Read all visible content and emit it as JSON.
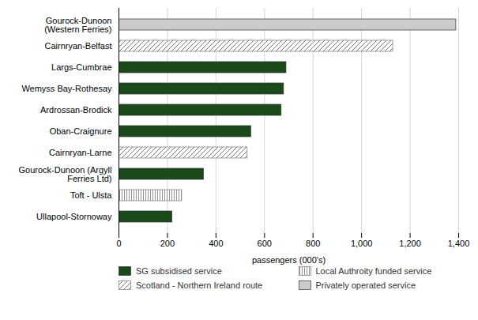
{
  "chart_data": {
    "type": "bar",
    "orientation": "horizontal",
    "categories": [
      "Gourock-Dunoon\n(Western Ferries)",
      "Cairnryan-Belfast",
      "Largs-Cumbrae",
      "Wemyss Bay-Rothesay",
      "Ardrossan-Brodick",
      "Oban-Craignure",
      "Cairnryan-Larne",
      "Gourock-Dunoon (Argyll\nFerries Ltd)",
      "Toft - Ulsta",
      "Ullapool-Stornoway"
    ],
    "series": [
      {
        "name": "SG subsidised service",
        "color": "#1a4a1a",
        "values": [
          null,
          null,
          690,
          680,
          670,
          545,
          null,
          350,
          null,
          220
        ]
      },
      {
        "name": "Scotland - Northern Ireland route",
        "values": [
          null,
          1130,
          null,
          null,
          null,
          null,
          530,
          null,
          null,
          null
        ]
      },
      {
        "name": "Local Authroity funded service",
        "values": [
          null,
          null,
          null,
          null,
          null,
          null,
          null,
          null,
          260,
          null
        ]
      },
      {
        "name": "Privately operated service",
        "color": "#cccccc",
        "values": [
          1390,
          null,
          null,
          null,
          null,
          null,
          null,
          null,
          null,
          null
        ]
      }
    ],
    "xlabel": "passengers (000's)",
    "xlim": [
      0,
      1400
    ],
    "xticks": [
      0,
      200,
      400,
      600,
      800,
      {
        "value": 1000,
        "label": "1,000"
      },
      {
        "value": 1200,
        "label": "1,200"
      },
      {
        "value": 1400,
        "label": "1,400"
      }
    ],
    "grid": true,
    "legend": "bottom"
  }
}
